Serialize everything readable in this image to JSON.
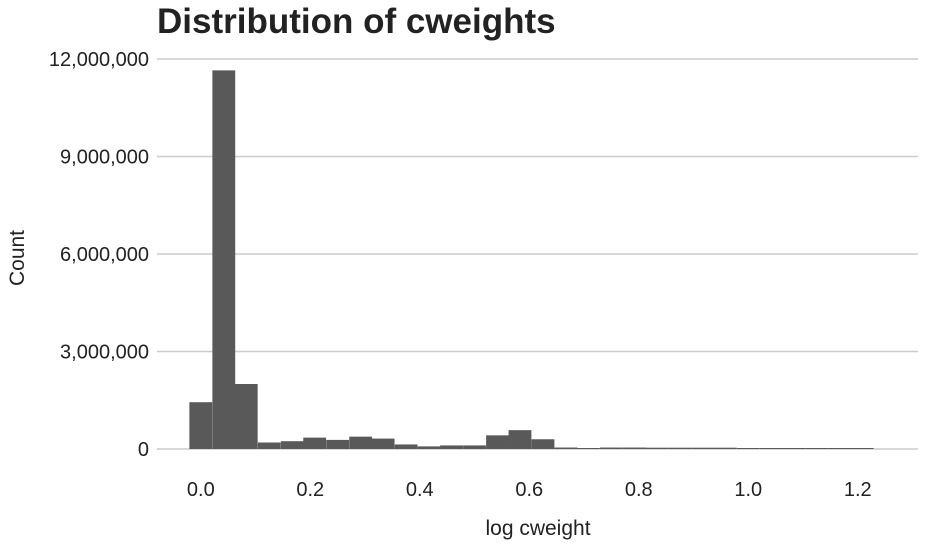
{
  "chart_data": {
    "type": "bar",
    "title": "Distribution of cweights",
    "xlabel": "log cweight",
    "ylabel": "Count",
    "xlim": [
      -0.08,
      1.31
    ],
    "ylim": [
      -850000,
      12000000
    ],
    "bin_width": 0.0417,
    "x_ticks": [
      0.0,
      0.2,
      0.4,
      0.6,
      0.8,
      1.0,
      1.2
    ],
    "x_tick_labels": [
      "0.0",
      "0.2",
      "0.4",
      "0.6",
      "0.8",
      "1.0",
      "1.2"
    ],
    "y_ticks": [
      0,
      3000000,
      6000000,
      9000000,
      12000000
    ],
    "y_tick_labels": [
      "0",
      "3,000,000",
      "6,000,000",
      "9,000,000",
      "12,000,000"
    ],
    "grid": "horizontal",
    "bar_color": "#595959",
    "grid_color": "#cccccc",
    "bins": [
      {
        "x": 0.0,
        "count": 1440000
      },
      {
        "x": 0.042,
        "count": 11650000
      },
      {
        "x": 0.083,
        "count": 2000000
      },
      {
        "x": 0.125,
        "count": 200000
      },
      {
        "x": 0.167,
        "count": 240000
      },
      {
        "x": 0.208,
        "count": 350000
      },
      {
        "x": 0.25,
        "count": 280000
      },
      {
        "x": 0.292,
        "count": 380000
      },
      {
        "x": 0.333,
        "count": 320000
      },
      {
        "x": 0.375,
        "count": 140000
      },
      {
        "x": 0.417,
        "count": 80000
      },
      {
        "x": 0.458,
        "count": 110000
      },
      {
        "x": 0.5,
        "count": 110000
      },
      {
        "x": 0.542,
        "count": 420000
      },
      {
        "x": 0.583,
        "count": 580000
      },
      {
        "x": 0.625,
        "count": 300000
      },
      {
        "x": 0.667,
        "count": 45000
      },
      {
        "x": 0.708,
        "count": 15000
      },
      {
        "x": 0.75,
        "count": 45000
      },
      {
        "x": 0.792,
        "count": 45000
      },
      {
        "x": 0.833,
        "count": 40000
      },
      {
        "x": 0.875,
        "count": 40000
      },
      {
        "x": 0.917,
        "count": 40000
      },
      {
        "x": 0.958,
        "count": 40000
      },
      {
        "x": 1.0,
        "count": 10000
      },
      {
        "x": 1.042,
        "count": 10000
      },
      {
        "x": 1.083,
        "count": 10000
      },
      {
        "x": 1.125,
        "count": 10000
      },
      {
        "x": 1.167,
        "count": 5000
      },
      {
        "x": 1.208,
        "count": 5000
      }
    ]
  }
}
